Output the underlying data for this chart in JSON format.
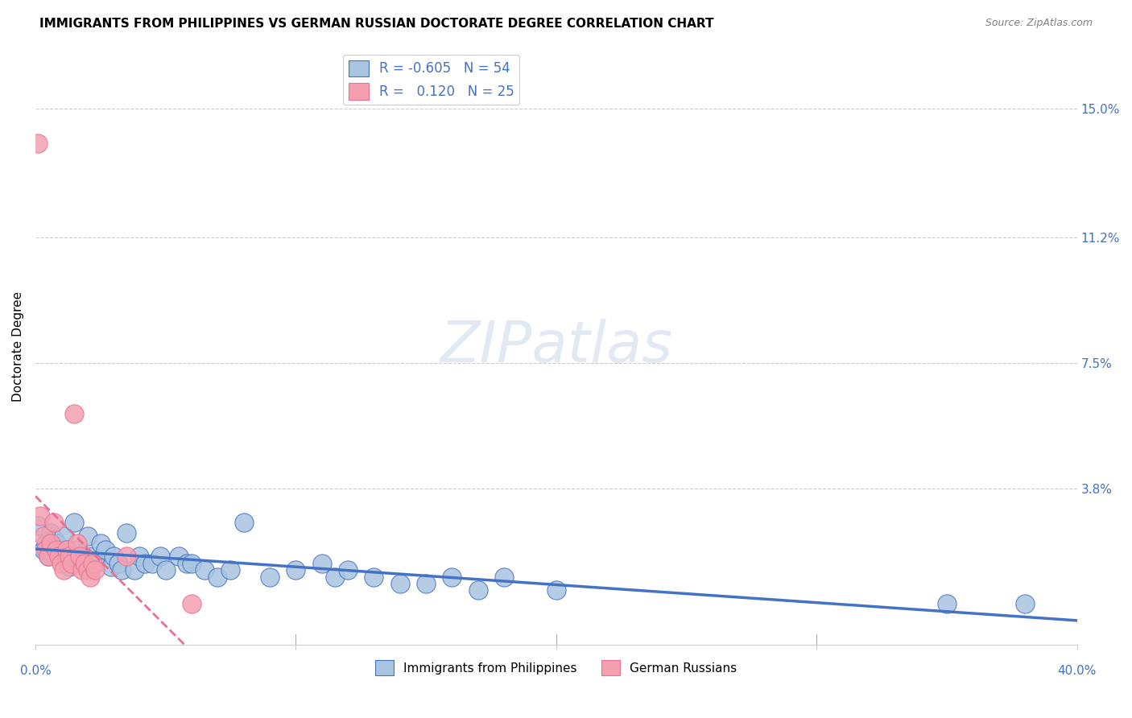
{
  "title": "IMMIGRANTS FROM PHILIPPINES VS GERMAN RUSSIAN DOCTORATE DEGREE CORRELATION CHART",
  "source": "Source: ZipAtlas.com",
  "ylabel": "Doctorate Degree",
  "ytick_labels": [
    "15.0%",
    "11.2%",
    "7.5%",
    "3.8%"
  ],
  "ytick_values": [
    0.15,
    0.112,
    0.075,
    0.038
  ],
  "xlim": [
    0.0,
    0.4
  ],
  "ylim": [
    -0.008,
    0.168
  ],
  "blue_R": "-0.605",
  "blue_N": "54",
  "pink_R": "0.120",
  "pink_N": "25",
  "blue_color": "#a8c4e0",
  "pink_color": "#f4a0b0",
  "blue_line_color": "#4472c4",
  "pink_line_color": "#e87090",
  "blue_scatter": [
    [
      0.001,
      0.027
    ],
    [
      0.003,
      0.02
    ],
    [
      0.004,
      0.022
    ],
    [
      0.005,
      0.018
    ],
    [
      0.006,
      0.025
    ],
    [
      0.007,
      0.023
    ],
    [
      0.008,
      0.022
    ],
    [
      0.009,
      0.02
    ],
    [
      0.01,
      0.018
    ],
    [
      0.011,
      0.024
    ],
    [
      0.012,
      0.02
    ],
    [
      0.013,
      0.015
    ],
    [
      0.014,
      0.018
    ],
    [
      0.015,
      0.028
    ],
    [
      0.016,
      0.02
    ],
    [
      0.017,
      0.018
    ],
    [
      0.018,
      0.016
    ],
    [
      0.02,
      0.024
    ],
    [
      0.022,
      0.018
    ],
    [
      0.023,
      0.016
    ],
    [
      0.025,
      0.022
    ],
    [
      0.027,
      0.02
    ],
    [
      0.029,
      0.015
    ],
    [
      0.03,
      0.018
    ],
    [
      0.032,
      0.016
    ],
    [
      0.033,
      0.014
    ],
    [
      0.035,
      0.025
    ],
    [
      0.038,
      0.014
    ],
    [
      0.04,
      0.018
    ],
    [
      0.042,
      0.016
    ],
    [
      0.045,
      0.016
    ],
    [
      0.048,
      0.018
    ],
    [
      0.05,
      0.014
    ],
    [
      0.055,
      0.018
    ],
    [
      0.058,
      0.016
    ],
    [
      0.06,
      0.016
    ],
    [
      0.065,
      0.014
    ],
    [
      0.07,
      0.012
    ],
    [
      0.075,
      0.014
    ],
    [
      0.08,
      0.028
    ],
    [
      0.09,
      0.012
    ],
    [
      0.1,
      0.014
    ],
    [
      0.11,
      0.016
    ],
    [
      0.115,
      0.012
    ],
    [
      0.12,
      0.014
    ],
    [
      0.13,
      0.012
    ],
    [
      0.14,
      0.01
    ],
    [
      0.15,
      0.01
    ],
    [
      0.16,
      0.012
    ],
    [
      0.17,
      0.008
    ],
    [
      0.18,
      0.012
    ],
    [
      0.2,
      0.008
    ],
    [
      0.35,
      0.004
    ],
    [
      0.38,
      0.004
    ]
  ],
  "pink_scatter": [
    [
      0.001,
      0.14
    ],
    [
      0.002,
      0.03
    ],
    [
      0.003,
      0.024
    ],
    [
      0.004,
      0.02
    ],
    [
      0.005,
      0.018
    ],
    [
      0.006,
      0.022
    ],
    [
      0.007,
      0.028
    ],
    [
      0.008,
      0.02
    ],
    [
      0.009,
      0.018
    ],
    [
      0.01,
      0.016
    ],
    [
      0.011,
      0.014
    ],
    [
      0.012,
      0.02
    ],
    [
      0.013,
      0.018
    ],
    [
      0.014,
      0.016
    ],
    [
      0.015,
      0.06
    ],
    [
      0.016,
      0.022
    ],
    [
      0.017,
      0.018
    ],
    [
      0.018,
      0.014
    ],
    [
      0.019,
      0.016
    ],
    [
      0.02,
      0.014
    ],
    [
      0.021,
      0.012
    ],
    [
      0.022,
      0.016
    ],
    [
      0.023,
      0.014
    ],
    [
      0.035,
      0.018
    ],
    [
      0.06,
      0.004
    ]
  ]
}
